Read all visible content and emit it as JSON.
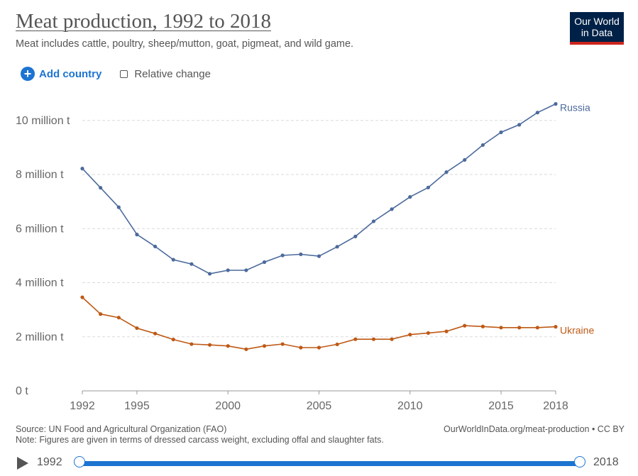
{
  "header": {
    "title": "Meat production, 1992 to 2018",
    "subtitle": "Meat includes cattle, poultry, sheep/mutton, goat, pigmeat, and wild game.",
    "logo_line1": "Our World",
    "logo_line2": "in Data"
  },
  "controls": {
    "add_country": "Add country",
    "relative_change": "Relative change"
  },
  "footer": {
    "source": "Source: UN Food and Agricultural Organization (FAO)",
    "note": "Note: Figures are given in terms of dressed carcass weight, excluding offal and slaughter fats.",
    "url": "OurWorldInData.org/meat-production • CC BY"
  },
  "timeline": {
    "start_label": "1992",
    "end_label": "2018",
    "start_value": 1992,
    "end_value": 2018
  },
  "chart_data": {
    "type": "line",
    "title": "Meat production, 1992 to 2018",
    "x": [
      1992,
      1993,
      1994,
      1995,
      1996,
      1997,
      1998,
      1999,
      2000,
      2001,
      2002,
      2003,
      2004,
      2005,
      2006,
      2007,
      2008,
      2009,
      2010,
      2011,
      2012,
      2013,
      2014,
      2015,
      2016,
      2017,
      2018
    ],
    "series": [
      {
        "name": "Russia",
        "color": "#4c6a9c",
        "values": [
          8.22,
          7.51,
          6.79,
          5.78,
          5.34,
          4.85,
          4.69,
          4.33,
          4.46,
          4.46,
          4.76,
          5.01,
          5.05,
          4.98,
          5.33,
          5.71,
          6.27,
          6.72,
          7.17,
          7.52,
          8.09,
          8.54,
          9.09,
          9.56,
          9.84,
          10.29,
          10.61
        ]
      },
      {
        "name": "Ukraine",
        "color": "#be5915",
        "values": [
          3.46,
          2.84,
          2.71,
          2.32,
          2.12,
          1.9,
          1.73,
          1.7,
          1.66,
          1.54,
          1.66,
          1.73,
          1.6,
          1.6,
          1.72,
          1.91,
          1.91,
          1.91,
          2.08,
          2.14,
          2.2,
          2.41,
          2.38,
          2.34,
          2.34,
          2.34,
          2.37
        ]
      }
    ],
    "y_ticks": [
      0,
      2,
      4,
      6,
      8,
      10
    ],
    "y_tick_labels": [
      "0 t",
      "2 million t",
      "4 million t",
      "6 million t",
      "8 million t",
      "10 million t"
    ],
    "x_ticks": [
      1992,
      1995,
      2000,
      2005,
      2010,
      2015,
      2018
    ],
    "x_tick_labels": [
      "1992",
      "1995",
      "2000",
      "2005",
      "2010",
      "2015",
      "2018"
    ],
    "xlim": [
      1992,
      2018
    ],
    "ylim": [
      0,
      11.2
    ],
    "grid": "horizontal dashed",
    "legend": "line-end labels"
  }
}
